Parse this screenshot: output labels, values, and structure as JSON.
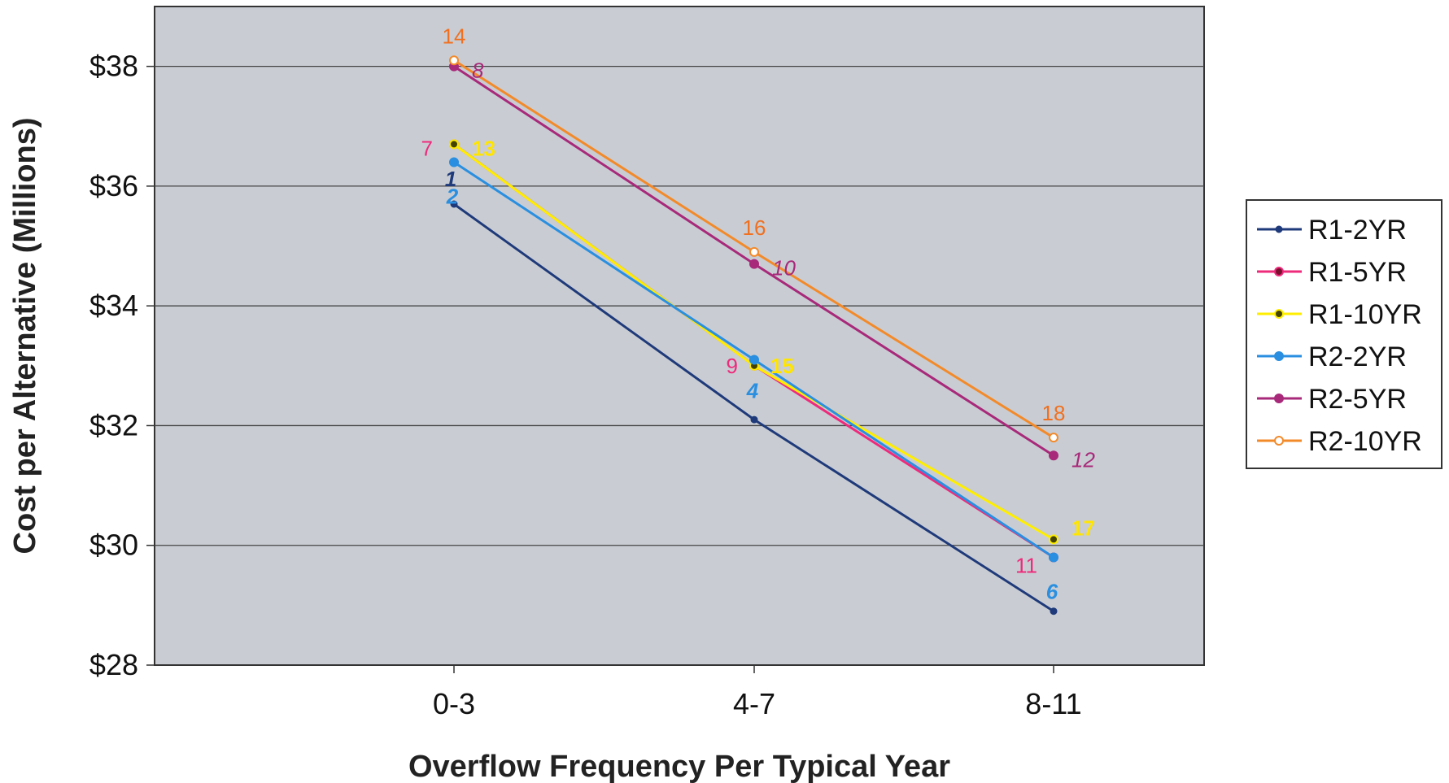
{
  "chart_data": {
    "type": "line",
    "title": "",
    "xlabel": "Overflow Frequency Per Typical Year",
    "ylabel": "Cost per Alternative (Millions)",
    "categories": [
      "0-3",
      "4-7",
      "8-11"
    ],
    "ylim": [
      28,
      39
    ],
    "yticks": [
      28,
      30,
      32,
      34,
      36,
      38
    ],
    "ytick_labels": [
      "$28",
      "$30",
      "$32",
      "$34",
      "$36",
      "$38"
    ],
    "grid": true,
    "legend_position": "right",
    "series": [
      {
        "name": "R1-2YR",
        "values": [
          35.7,
          32.1,
          28.9
        ],
        "color": "#1f3a7a",
        "marker_fill": "#1f3a7a",
        "point_labels": [
          "",
          "",
          ""
        ],
        "label_color": "#1f3a7a",
        "label_italic": false
      },
      {
        "name": "R1-5YR",
        "values": [
          36.7,
          33.0,
          29.8
        ],
        "color": "#ee2a7b",
        "marker_fill": "#7a1030",
        "point_labels": [
          "7",
          "9",
          "11"
        ],
        "label_color": "#ee2a7b",
        "label_italic": false
      },
      {
        "name": "R1-10YR",
        "values": [
          36.7,
          33.0,
          30.1
        ],
        "color": "#ffee00",
        "marker_fill": "#444400",
        "point_labels": [
          "13",
          "15",
          "17"
        ],
        "label_color": "#ffe500",
        "label_italic": false
      },
      {
        "name": "R2-2YR",
        "values": [
          36.4,
          33.1,
          29.8
        ],
        "color": "#2a8fe0",
        "marker_fill": "#2a8fe0",
        "point_labels": [
          "2",
          "4",
          "6"
        ],
        "label_color": "#2a8fe0",
        "label_italic": true
      },
      {
        "name": "R2-5YR",
        "values": [
          38.0,
          34.7,
          31.5
        ],
        "color": "#a8297a",
        "marker_fill": "#a8297a",
        "point_labels": [
          "8",
          "10",
          "12"
        ],
        "label_color": "#a8297a",
        "label_italic": true
      },
      {
        "name": "R2-10YR",
        "values": [
          38.1,
          34.9,
          31.8
        ],
        "color": "#f38a2a",
        "marker_fill": "#ffffff",
        "point_labels": [
          "14",
          "16",
          "18"
        ],
        "label_color": "#f07020",
        "label_italic": false
      }
    ],
    "annotations": [
      {
        "text": "1",
        "category": "0-3",
        "y": 36.3,
        "color": "#1f3a7a"
      }
    ]
  }
}
